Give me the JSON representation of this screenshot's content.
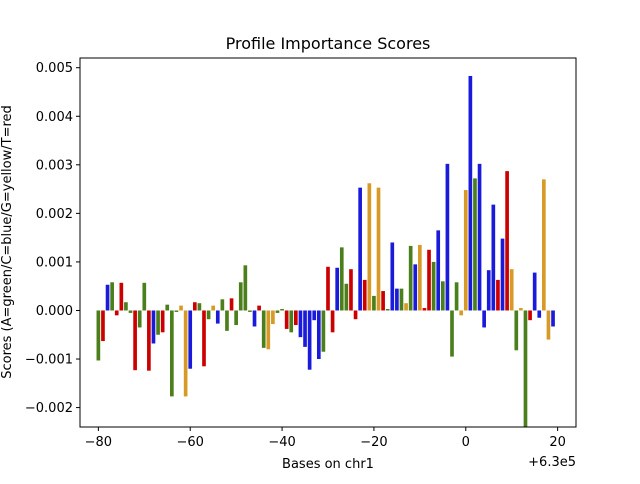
{
  "chart_data": {
    "type": "bar",
    "title": "Profile Importance Scores",
    "xlabel": "Bases on chr1",
    "ylabel": "Scores (A=green/C=blue/G=yellow/T=red",
    "x_offset_label": "+6.3e5",
    "xlim": [
      -84,
      24
    ],
    "ylim": [
      -0.0024,
      0.0052
    ],
    "x_ticks": [
      -80,
      -60,
      -40,
      -20,
      0,
      20
    ],
    "x_tick_labels": [
      "−80",
      "−60",
      "−40",
      "−20",
      "0",
      "20"
    ],
    "y_ticks": [
      -0.002,
      -0.001,
      0.0,
      0.001,
      0.002,
      0.003,
      0.004,
      0.005
    ],
    "y_tick_labels": [
      "−0.002",
      "−0.001",
      "0.000",
      "0.001",
      "0.002",
      "0.003",
      "0.004",
      "0.005"
    ],
    "grid": false,
    "legend": "none",
    "colors": {
      "A": "#4b7f1b",
      "C": "#1a1adb",
      "G": "#d89a26",
      "T": "#cc0000"
    },
    "bars": [
      {
        "x": -80,
        "base": "A",
        "value": -0.00103
      },
      {
        "x": -79,
        "base": "T",
        "value": -0.00063
      },
      {
        "x": -78,
        "base": "C",
        "value": 0.00053
      },
      {
        "x": -77,
        "base": "A",
        "value": 0.00058
      },
      {
        "x": -76,
        "base": "T",
        "value": -0.0001
      },
      {
        "x": -75,
        "base": "T",
        "value": 0.00057
      },
      {
        "x": -74,
        "base": "A",
        "value": 0.00017
      },
      {
        "x": -73,
        "base": "A",
        "value": -5e-05
      },
      {
        "x": -72,
        "base": "T",
        "value": -0.00123
      },
      {
        "x": -71,
        "base": "A",
        "value": -0.00035
      },
      {
        "x": -70,
        "base": "A",
        "value": 0.00057
      },
      {
        "x": -69,
        "base": "T",
        "value": -0.00124
      },
      {
        "x": -68,
        "base": "C",
        "value": -0.00068
      },
      {
        "x": -67,
        "base": "A",
        "value": -0.0005
      },
      {
        "x": -66,
        "base": "T",
        "value": -0.00045
      },
      {
        "x": -65,
        "base": "A",
        "value": 0.00012
      },
      {
        "x": -64,
        "base": "A",
        "value": -0.00177
      },
      {
        "x": -63,
        "base": "A",
        "value": -3e-05
      },
      {
        "x": -62,
        "base": "G",
        "value": 0.0001
      },
      {
        "x": -61,
        "base": "G",
        "value": -0.00177
      },
      {
        "x": -60,
        "base": "C",
        "value": -0.0012
      },
      {
        "x": -59,
        "base": "T",
        "value": 0.00017
      },
      {
        "x": -58,
        "base": "A",
        "value": 0.00015
      },
      {
        "x": -57,
        "base": "T",
        "value": -0.00115
      },
      {
        "x": -56,
        "base": "A",
        "value": -0.00018
      },
      {
        "x": -55,
        "base": "G",
        "value": 0.0001
      },
      {
        "x": -54,
        "base": "C",
        "value": -0.00027
      },
      {
        "x": -53,
        "base": "A",
        "value": 0.00023
      },
      {
        "x": -52,
        "base": "A",
        "value": -0.00042
      },
      {
        "x": -51,
        "base": "T",
        "value": 0.00025
      },
      {
        "x": -50,
        "base": "A",
        "value": -0.0003
      },
      {
        "x": -49,
        "base": "A",
        "value": 0.00058
      },
      {
        "x": -48,
        "base": "A",
        "value": 0.00093
      },
      {
        "x": -47,
        "base": "A",
        "value": -3e-05
      },
      {
        "x": -46,
        "base": "C",
        "value": -0.00033
      },
      {
        "x": -45,
        "base": "T",
        "value": 0.0001
      },
      {
        "x": -44,
        "base": "A",
        "value": -0.00077
      },
      {
        "x": -43,
        "base": "G",
        "value": -0.0008
      },
      {
        "x": -42,
        "base": "G",
        "value": -0.00028
      },
      {
        "x": -41,
        "base": "A",
        "value": -5e-05
      },
      {
        "x": -40,
        "base": "A",
        "value": 3e-05
      },
      {
        "x": -39,
        "base": "T",
        "value": -0.00038
      },
      {
        "x": -38,
        "base": "A",
        "value": -0.00045
      },
      {
        "x": -37,
        "base": "T",
        "value": -0.0003
      },
      {
        "x": -36,
        "base": "C",
        "value": -0.00055
      },
      {
        "x": -35,
        "base": "C",
        "value": -0.00075
      },
      {
        "x": -34,
        "base": "C",
        "value": -0.00122
      },
      {
        "x": -33,
        "base": "C",
        "value": -0.0002
      },
      {
        "x": -32,
        "base": "C",
        "value": -0.001
      },
      {
        "x": -31,
        "base": "A",
        "value": -0.00085
      },
      {
        "x": -30,
        "base": "T",
        "value": 0.0009
      },
      {
        "x": -29,
        "base": "T",
        "value": -0.00045
      },
      {
        "x": -28,
        "base": "C",
        "value": 0.00088
      },
      {
        "x": -27,
        "base": "A",
        "value": 0.0013
      },
      {
        "x": -26,
        "base": "A",
        "value": 0.00055
      },
      {
        "x": -25,
        "base": "T",
        "value": 0.00085
      },
      {
        "x": -24,
        "base": "T",
        "value": -0.00018
      },
      {
        "x": -23,
        "base": "C",
        "value": 0.00253
      },
      {
        "x": -22,
        "base": "T",
        "value": 0.00063
      },
      {
        "x": -21,
        "base": "G",
        "value": 0.00262
      },
      {
        "x": -20,
        "base": "A",
        "value": 0.0003
      },
      {
        "x": -19,
        "base": "G",
        "value": 0.00253
      },
      {
        "x": -18,
        "base": "T",
        "value": 0.0004
      },
      {
        "x": -17,
        "base": "A",
        "value": 3e-05
      },
      {
        "x": -16,
        "base": "C",
        "value": 0.0014
      },
      {
        "x": -15,
        "base": "C",
        "value": 0.00045
      },
      {
        "x": -14,
        "base": "A",
        "value": 0.00045
      },
      {
        "x": -13,
        "base": "G",
        "value": 0.00015
      },
      {
        "x": -12,
        "base": "A",
        "value": 0.00133
      },
      {
        "x": -11,
        "base": "C",
        "value": 0.00095
      },
      {
        "x": -10,
        "base": "G",
        "value": 0.00135
      },
      {
        "x": -9,
        "base": "T",
        "value": 5e-05
      },
      {
        "x": -8,
        "base": "T",
        "value": 0.00125
      },
      {
        "x": -7,
        "base": "A",
        "value": 0.001
      },
      {
        "x": -6,
        "base": "C",
        "value": 0.00165
      },
      {
        "x": -5,
        "base": "A",
        "value": 0.0006
      },
      {
        "x": -4,
        "base": "C",
        "value": 0.00302
      },
      {
        "x": -3,
        "base": "A",
        "value": -0.00095
      },
      {
        "x": -2,
        "base": "A",
        "value": 0.00058
      },
      {
        "x": -1,
        "base": "G",
        "value": -0.0001
      },
      {
        "x": 0,
        "base": "G",
        "value": 0.00248
      },
      {
        "x": 1,
        "base": "C",
        "value": 0.00483
      },
      {
        "x": 2,
        "base": "A",
        "value": 0.00272
      },
      {
        "x": 3,
        "base": "C",
        "value": 0.00302
      },
      {
        "x": 4,
        "base": "C",
        "value": -0.00035
      },
      {
        "x": 5,
        "base": "C",
        "value": 0.00083
      },
      {
        "x": 6,
        "base": "C",
        "value": 0.00218
      },
      {
        "x": 7,
        "base": "T",
        "value": 0.00063
      },
      {
        "x": 8,
        "base": "C",
        "value": 0.00148
      },
      {
        "x": 9,
        "base": "T",
        "value": 0.00287
      },
      {
        "x": 10,
        "base": "G",
        "value": 0.00085
      },
      {
        "x": 11,
        "base": "A",
        "value": -0.00082
      },
      {
        "x": 12,
        "base": "G",
        "value": 5e-05
      },
      {
        "x": 13,
        "base": "A",
        "value": -0.0024
      },
      {
        "x": 14,
        "base": "T",
        "value": -0.0002
      },
      {
        "x": 15,
        "base": "C",
        "value": 0.00078
      },
      {
        "x": 16,
        "base": "C",
        "value": -0.00015
      },
      {
        "x": 17,
        "base": "G",
        "value": 0.0027
      },
      {
        "x": 18,
        "base": "G",
        "value": -0.0006
      },
      {
        "x": 19,
        "base": "C",
        "value": -0.00033
      }
    ]
  }
}
